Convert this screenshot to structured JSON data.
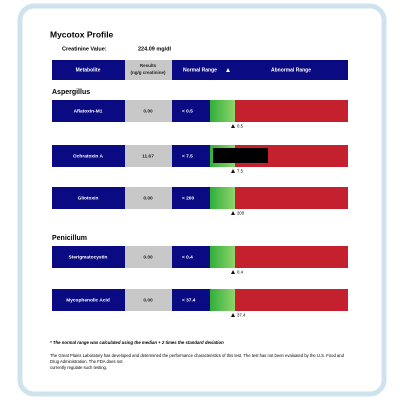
{
  "header": {
    "title": "Mycotox Profile",
    "creatinine_label": "Creatinine Value:",
    "creatinine_value": "224.09 mg/dl"
  },
  "table": {
    "columns": [
      "Metabolite",
      "Results",
      "Normal Range",
      "Abnormal Range"
    ],
    "results_unit": "(ng/g creatinine)",
    "groups": [
      {
        "name": "Aspergillus",
        "rows": [
          {
            "metabolite": "Aflatoxin-M1",
            "result": "0.00",
            "normal_range": "< 0.5",
            "marker": "0.5"
          },
          {
            "metabolite": "Ochratoxin A",
            "result": "11.67",
            "normal_range": "< 7.5",
            "marker": "7.5"
          },
          {
            "metabolite": "Gliotoxin",
            "result": "0.00",
            "normal_range": "< 200",
            "marker": "200"
          }
        ]
      },
      {
        "name": "Penicillum",
        "rows": [
          {
            "metabolite": "Sterigmatocystin",
            "result": "0.00",
            "normal_range": "< 0.4",
            "marker": "0.4"
          },
          {
            "metabolite": "Mycophenolic Acid",
            "result": "0.00",
            "normal_range": "< 37.4",
            "marker": "37.4"
          }
        ]
      }
    ]
  },
  "footer": {
    "note": "* The normal range was calculated using the median + 2 times the standard deviation",
    "disclaimer": [
      "The Great Plains Laboratory has developed and determined the performance characteristics of this test. The test has not been evaluated by the U.S. Food and",
      "Drug Administration. The FDA does not",
      "currently regulate such testing."
    ]
  }
}
